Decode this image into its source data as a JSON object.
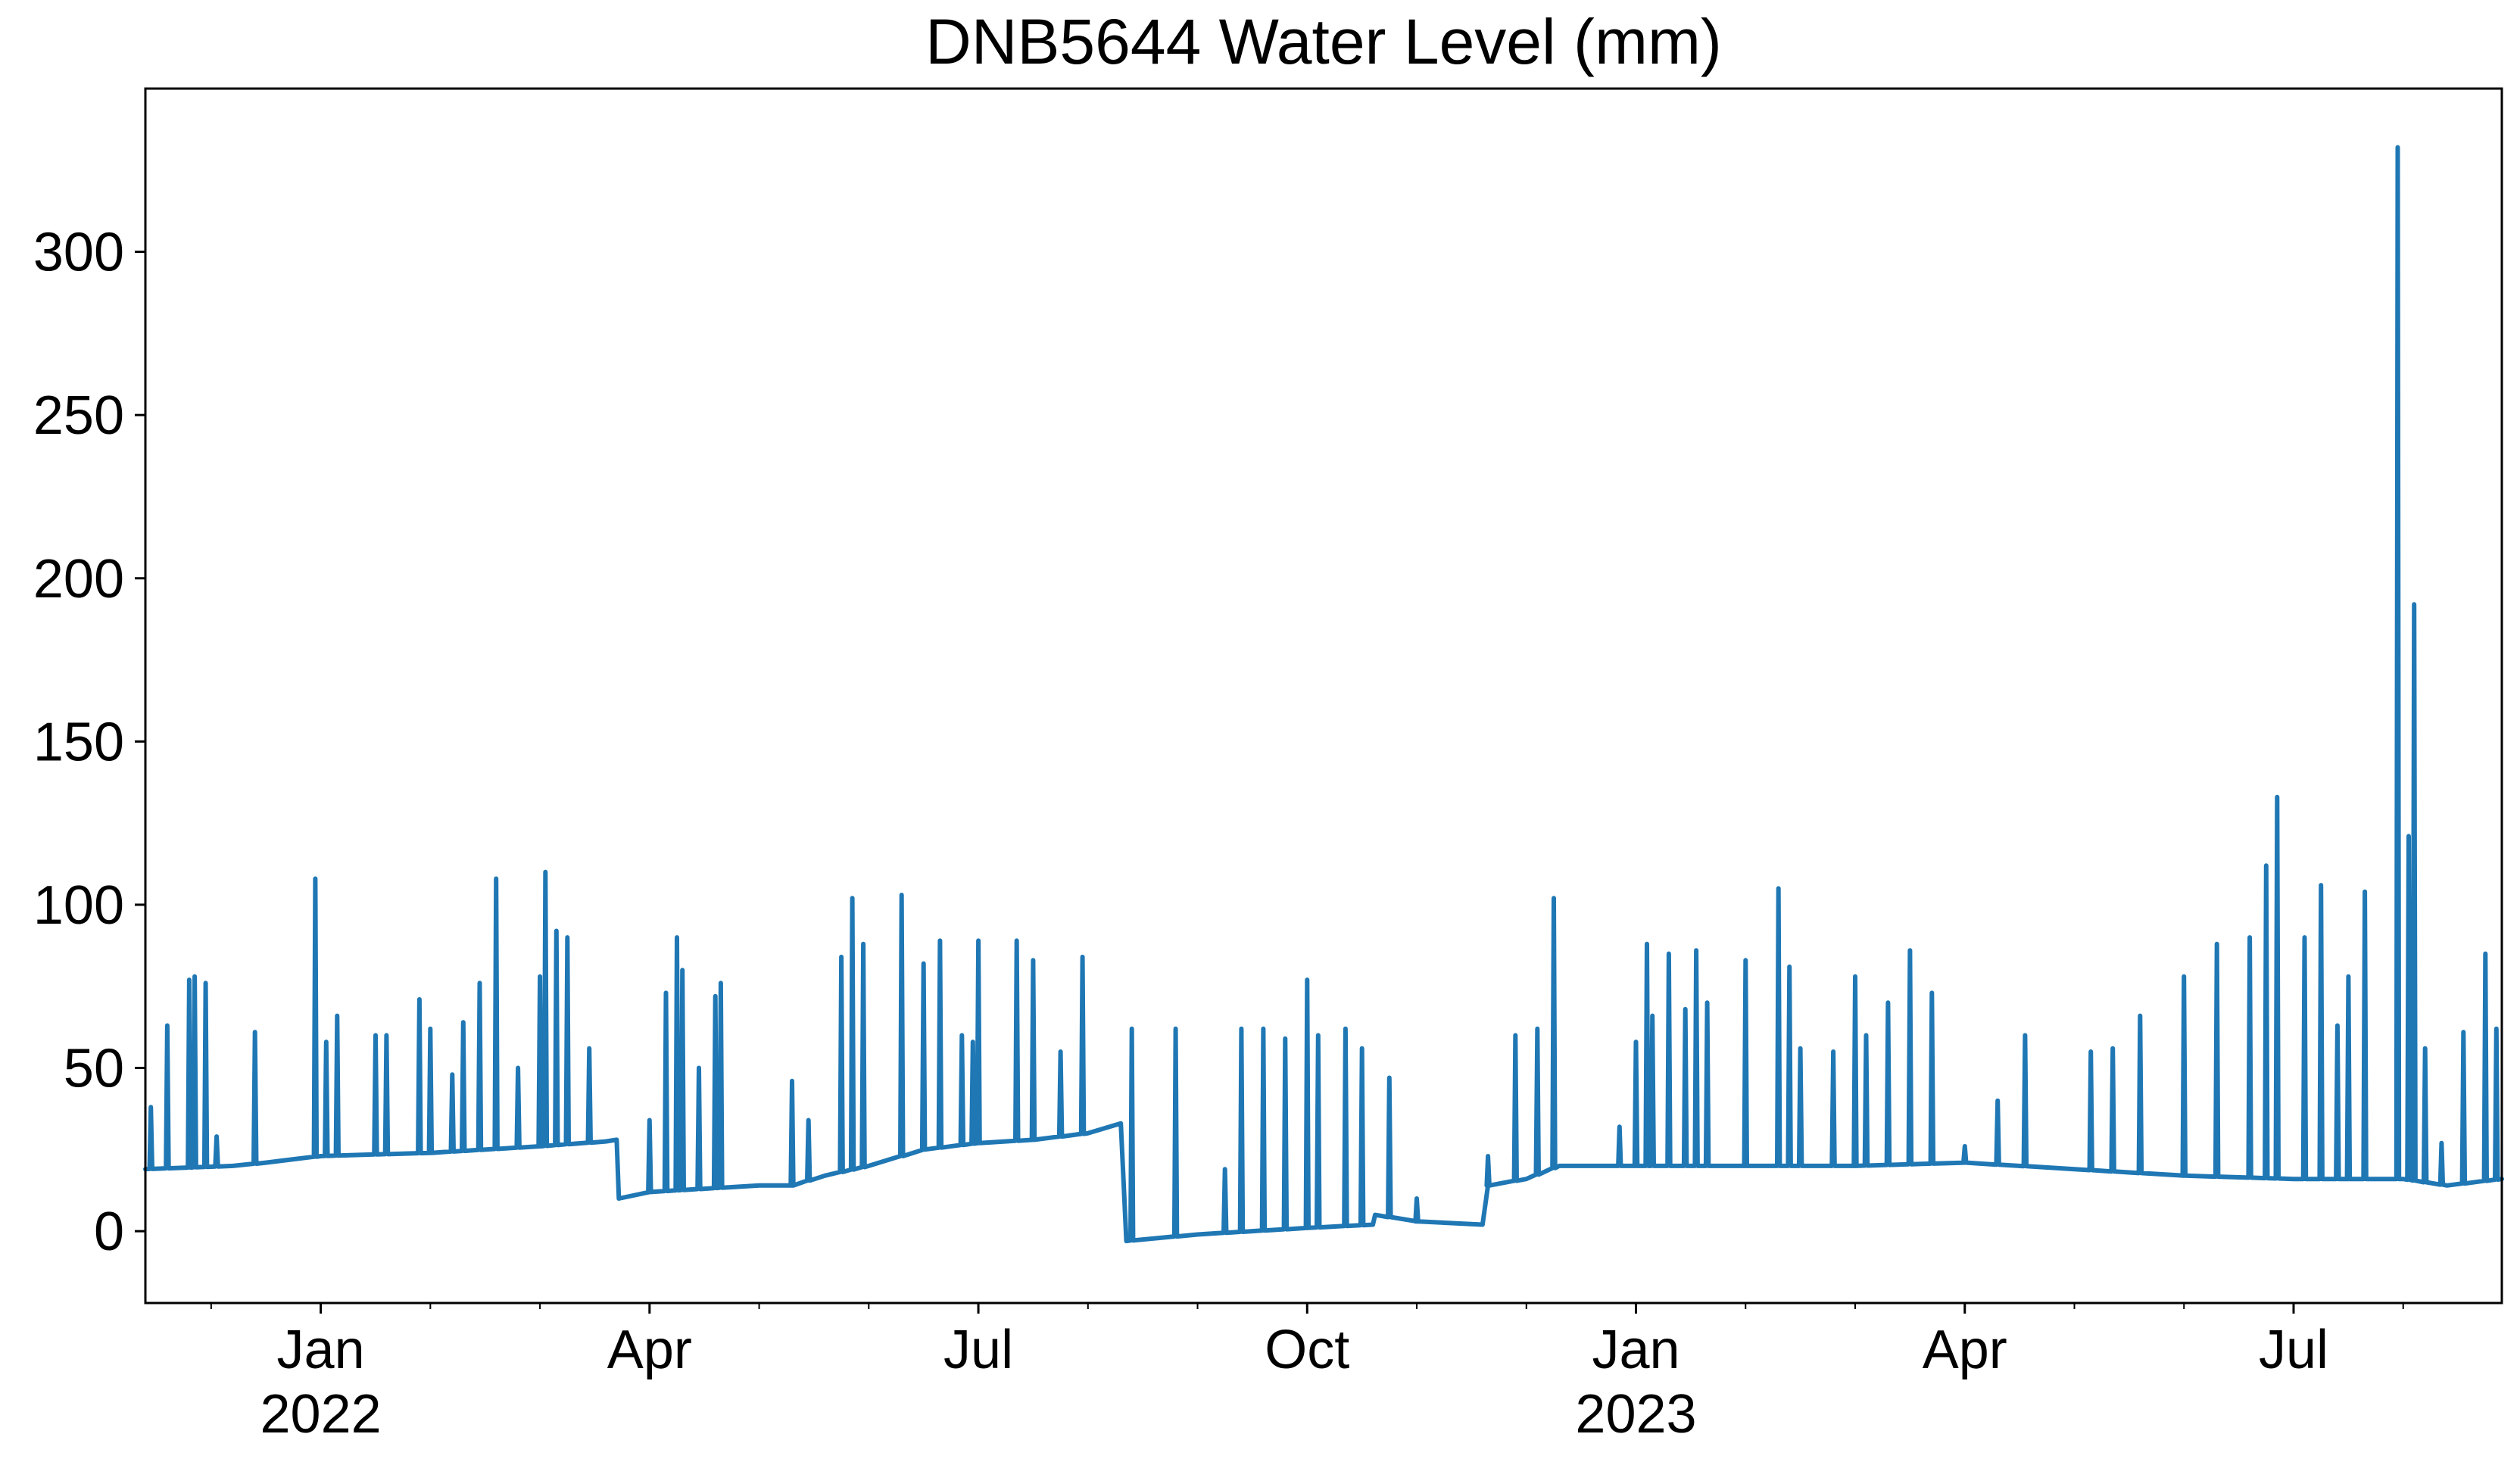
{
  "chart_data": {
    "type": "line",
    "title": "DNB5644 Water Level (mm)",
    "xlabel": "",
    "ylabel": "",
    "x_unit": "months since 2022-01-01",
    "xlim": [
      -1.6,
      19.9
    ],
    "ylim": [
      -22,
      350
    ],
    "line_color": "#1f77b4",
    "y_ticks": [
      {
        "value": 0,
        "label": "0"
      },
      {
        "value": 50,
        "label": "50"
      },
      {
        "value": 100,
        "label": "100"
      },
      {
        "value": 150,
        "label": "150"
      },
      {
        "value": 200,
        "label": "200"
      },
      {
        "value": 250,
        "label": "250"
      },
      {
        "value": 300,
        "label": "300"
      }
    ],
    "x_major_ticks": [
      {
        "value": 0,
        "label": "Jan",
        "sublabel": "2022"
      },
      {
        "value": 3,
        "label": "Apr",
        "sublabel": ""
      },
      {
        "value": 6,
        "label": "Jul",
        "sublabel": ""
      },
      {
        "value": 9,
        "label": "Oct",
        "sublabel": ""
      },
      {
        "value": 12,
        "label": "Jan",
        "sublabel": "2023"
      },
      {
        "value": 15,
        "label": "Apr",
        "sublabel": ""
      },
      {
        "value": 18,
        "label": "Jul",
        "sublabel": ""
      }
    ],
    "x_minor_ticks": [
      -1,
      1,
      2,
      4,
      5,
      7,
      8,
      10,
      11,
      13,
      14,
      16,
      17,
      19
    ],
    "series": [
      {
        "name": "Water Level (mm)",
        "baseline": [
          [
            -1.6,
            19
          ],
          [
            -0.8,
            20
          ],
          [
            -0.5,
            21
          ],
          [
            0.0,
            23
          ],
          [
            1.0,
            24
          ],
          [
            2.0,
            26
          ],
          [
            2.6,
            27.5
          ],
          [
            2.7,
            28
          ],
          [
            2.72,
            10
          ],
          [
            3.0,
            12
          ],
          [
            3.5,
            13
          ],
          [
            4.0,
            14
          ],
          [
            4.3,
            14
          ],
          [
            4.6,
            17
          ],
          [
            5.0,
            20
          ],
          [
            5.5,
            25
          ],
          [
            6.0,
            27
          ],
          [
            6.5,
            28
          ],
          [
            7.0,
            30
          ],
          [
            7.3,
            33
          ],
          [
            7.35,
            -3
          ],
          [
            8.0,
            -1
          ],
          [
            8.5,
            0
          ],
          [
            9.0,
            1
          ],
          [
            9.6,
            2
          ],
          [
            9.62,
            5
          ],
          [
            10.0,
            3
          ],
          [
            10.6,
            2
          ],
          [
            10.65,
            14
          ],
          [
            11.0,
            16
          ],
          [
            11.3,
            20
          ],
          [
            12.0,
            20
          ],
          [
            13.0,
            20
          ],
          [
            14.0,
            20
          ],
          [
            15.0,
            21
          ],
          [
            16.0,
            19
          ],
          [
            17.0,
            17
          ],
          [
            18.0,
            16
          ],
          [
            18.5,
            16
          ],
          [
            19.0,
            16
          ],
          [
            19.4,
            14
          ],
          [
            19.9,
            16
          ]
        ],
        "spikes": [
          [
            -1.55,
            38
          ],
          [
            -1.4,
            63
          ],
          [
            -1.2,
            77
          ],
          [
            -1.15,
            78
          ],
          [
            -1.05,
            76
          ],
          [
            -0.95,
            29
          ],
          [
            -0.6,
            61
          ],
          [
            -0.05,
            108
          ],
          [
            0.05,
            58
          ],
          [
            0.15,
            66
          ],
          [
            0.5,
            60
          ],
          [
            0.6,
            60
          ],
          [
            0.9,
            71
          ],
          [
            1.0,
            62
          ],
          [
            1.2,
            48
          ],
          [
            1.3,
            64
          ],
          [
            1.45,
            76
          ],
          [
            1.6,
            108
          ],
          [
            1.8,
            50
          ],
          [
            2.0,
            78
          ],
          [
            2.05,
            110
          ],
          [
            2.15,
            92
          ],
          [
            2.25,
            90
          ],
          [
            2.45,
            56
          ],
          [
            3.0,
            34
          ],
          [
            3.15,
            73
          ],
          [
            3.25,
            90
          ],
          [
            3.3,
            80
          ],
          [
            3.45,
            50
          ],
          [
            3.6,
            72
          ],
          [
            3.65,
            76
          ],
          [
            4.3,
            46
          ],
          [
            4.45,
            34
          ],
          [
            4.75,
            84
          ],
          [
            4.85,
            102
          ],
          [
            4.95,
            88
          ],
          [
            5.3,
            103
          ],
          [
            5.5,
            82
          ],
          [
            5.65,
            89
          ],
          [
            6.0,
            89
          ],
          [
            5.85,
            60
          ],
          [
            5.95,
            58
          ],
          [
            6.35,
            89
          ],
          [
            6.5,
            83
          ],
          [
            6.75,
            55
          ],
          [
            6.95,
            84
          ],
          [
            7.4,
            62
          ],
          [
            7.8,
            62
          ],
          [
            8.25,
            19
          ],
          [
            8.4,
            62
          ],
          [
            8.6,
            62
          ],
          [
            8.8,
            59
          ],
          [
            9.0,
            77
          ],
          [
            9.1,
            60
          ],
          [
            9.35,
            62
          ],
          [
            9.5,
            56
          ],
          [
            9.75,
            47
          ],
          [
            10.0,
            10
          ],
          [
            10.65,
            23
          ],
          [
            10.9,
            60
          ],
          [
            11.1,
            62
          ],
          [
            11.25,
            102
          ],
          [
            11.85,
            32
          ],
          [
            12.0,
            58
          ],
          [
            12.1,
            88
          ],
          [
            12.15,
            66
          ],
          [
            12.3,
            85
          ],
          [
            12.45,
            68
          ],
          [
            12.55,
            86
          ],
          [
            12.65,
            70
          ],
          [
            13.0,
            83
          ],
          [
            13.3,
            105
          ],
          [
            13.4,
            81
          ],
          [
            13.5,
            56
          ],
          [
            13.8,
            55
          ],
          [
            14.0,
            78
          ],
          [
            14.1,
            60
          ],
          [
            14.3,
            70
          ],
          [
            14.5,
            86
          ],
          [
            14.7,
            73
          ],
          [
            15.0,
            26
          ],
          [
            15.3,
            40
          ],
          [
            15.55,
            60
          ],
          [
            16.15,
            55
          ],
          [
            16.35,
            56
          ],
          [
            16.6,
            66
          ],
          [
            17.0,
            78
          ],
          [
            17.3,
            88
          ],
          [
            17.6,
            90
          ],
          [
            17.75,
            112
          ],
          [
            17.85,
            133
          ],
          [
            18.1,
            90
          ],
          [
            18.25,
            106
          ],
          [
            18.4,
            63
          ],
          [
            18.5,
            78
          ],
          [
            18.65,
            104
          ],
          [
            18.95,
            332
          ],
          [
            19.05,
            121
          ],
          [
            19.1,
            192
          ],
          [
            19.2,
            56
          ],
          [
            19.35,
            27
          ],
          [
            19.55,
            61
          ],
          [
            19.75,
            85
          ],
          [
            19.85,
            62
          ]
        ]
      }
    ]
  }
}
